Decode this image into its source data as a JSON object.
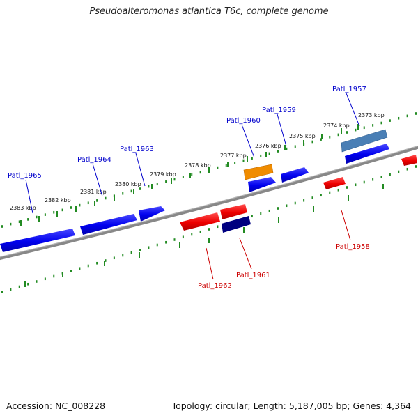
{
  "title": "Pseudoalteromonas atlantica T6c, complete genome",
  "footer": {
    "accession": "Accession: NC_008228",
    "summary": "Topology: circular; Length: 5,187,005 bp; Genes: 4,364"
  },
  "colors": {
    "forward_gene": "#0000ee",
    "reverse_gene": "#ee0000",
    "backbone": "#888888",
    "tick": "#228b22",
    "label_forward": "#0000cc",
    "label_reverse": "#cc0000"
  },
  "kbp_labels": [
    "2373 kbp",
    "2374 kbp",
    "2375 kbp",
    "2376 kbp",
    "2377 kbp",
    "2378 kbp",
    "2379 kbp",
    "2380 kbp",
    "2381 kbp",
    "2382 kbp",
    "2383 kbp"
  ],
  "genes": [
    {
      "name": "Patl_1957",
      "strand": "forward",
      "color": "#4a7fb5"
    },
    {
      "name": "Patl_1958",
      "strand": "reverse",
      "color": "#ee0000"
    },
    {
      "name": "Patl_1959",
      "strand": "forward",
      "color": "#0000ee"
    },
    {
      "name": "Patl_1960",
      "strand": "forward",
      "color": "#f08c00"
    },
    {
      "name": "Patl_1961",
      "strand": "reverse",
      "color": "#000080"
    },
    {
      "name": "Patl_1962",
      "strand": "reverse",
      "color": "#ee0000"
    },
    {
      "name": "Patl_1963",
      "strand": "forward",
      "color": "#0000ee"
    },
    {
      "name": "Patl_1964",
      "strand": "forward",
      "color": "#0000ee"
    },
    {
      "name": "Patl_1965",
      "strand": "forward",
      "color": "#0000ee"
    }
  ]
}
